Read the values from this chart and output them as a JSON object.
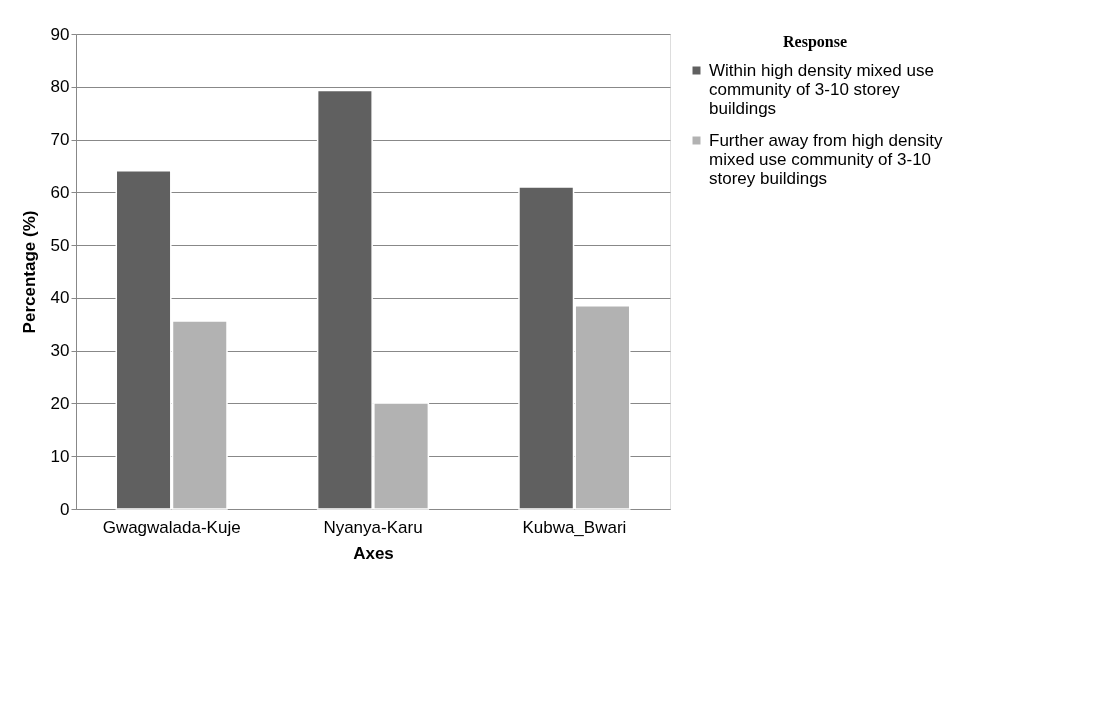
{
  "chart_data": {
    "type": "bar",
    "categories": [
      "Gwagwalada-Kuje",
      "Nyanya-Karu",
      "Kubwa_Bwari"
    ],
    "xlabel": "Axes",
    "ylabel": "Percentage (%)",
    "legend_title": "Response",
    "series": [
      {
        "name": "Within high density mixed use community of 3-10 storey buildings",
        "color": "#606060",
        "values": [
          64.1,
          79.3,
          61.0
        ]
      },
      {
        "name": "Further away from high density mixed use community of 3-10 storey buildings",
        "color": "#b2b2b2",
        "values": [
          35.6,
          20.1,
          38.5
        ]
      }
    ],
    "ylim": [
      0,
      90
    ],
    "yticks": [
      0,
      10,
      20,
      30,
      40,
      50,
      60,
      70,
      80,
      90
    ],
    "grid": "y",
    "legend": "right"
  }
}
